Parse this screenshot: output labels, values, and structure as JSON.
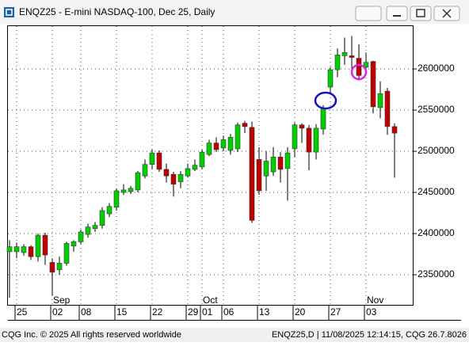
{
  "chart_data": {
    "type": "candlestick",
    "title": "ENQZ25 - E-mini NASDAQ-100, Dec 25, Daily",
    "categories": [
      null,
      "25",
      null,
      null,
      null,
      null,
      "02",
      null,
      null,
      null,
      "08",
      null,
      null,
      null,
      null,
      "15",
      null,
      null,
      null,
      null,
      "22",
      null,
      null,
      null,
      null,
      "29",
      null,
      "01",
      null,
      null,
      "06",
      null,
      null,
      null,
      null,
      "13",
      null,
      null,
      null,
      null,
      "20",
      null,
      null,
      null,
      null,
      "27",
      null,
      null,
      null,
      null,
      "03",
      null,
      null,
      null,
      null
    ],
    "month_labels": [
      null,
      null,
      null,
      null,
      null,
      null,
      "Sep",
      null,
      null,
      null,
      null,
      null,
      null,
      null,
      null,
      null,
      null,
      null,
      null,
      null,
      null,
      null,
      null,
      null,
      null,
      null,
      null,
      "Oct",
      null,
      null,
      null,
      null,
      null,
      null,
      null,
      null,
      null,
      null,
      null,
      null,
      null,
      null,
      null,
      null,
      null,
      null,
      null,
      null,
      null,
      null,
      "Nov",
      null,
      null,
      null,
      null
    ],
    "open": [
      2378000,
      2378000,
      2377000,
      2384000,
      2372000,
      2398000,
      2365000,
      2356000,
      2364000,
      2385000,
      2390000,
      2399000,
      2406000,
      2410000,
      2424000,
      2432000,
      2450000,
      2451000,
      2453000,
      2470000,
      2484000,
      2498000,
      2478000,
      2472000,
      2463000,
      2470000,
      2478000,
      2481000,
      2496000,
      2510000,
      2504000,
      2501000,
      2503000,
      2534000,
      2529000,
      2490000,
      2470000,
      2475000,
      2493000,
      2479000,
      2503000,
      2532000,
      2528000,
      2499000,
      2527000,
      2578000,
      2599000,
      2616000,
      2616000,
      2613000,
      2602000,
      2609000,
      2553000,
      2573000,
      2530000
    ],
    "high": [
      2392000,
      2389000,
      2387000,
      2386000,
      2400000,
      2401000,
      2370000,
      2372000,
      2390000,
      2392000,
      2405000,
      2412000,
      2414000,
      2432000,
      2437000,
      2455000,
      2460000,
      2458000,
      2476000,
      2490000,
      2502000,
      2501000,
      2485000,
      2475000,
      2476000,
      2485000,
      2490000,
      2502000,
      2514000,
      2517000,
      2519000,
      2521000,
      2535000,
      2537000,
      2536000,
      2505000,
      2500000,
      2505000,
      2499000,
      2505000,
      2535000,
      2534000,
      2532000,
      2533000,
      2556000,
      2602000,
      2625000,
      2638000,
      2640000,
      2630000,
      2620000,
      2610000,
      2585000,
      2577000,
      2534000
    ],
    "low": [
      2322000,
      2370000,
      2373000,
      2368000,
      2366000,
      2362000,
      2325000,
      2350000,
      2361000,
      2378000,
      2387000,
      2395000,
      2402000,
      2406000,
      2420000,
      2428000,
      2447000,
      2448000,
      2450000,
      2467000,
      2478000,
      2475000,
      2462000,
      2445000,
      2455000,
      2468000,
      2476000,
      2478000,
      2494000,
      2499000,
      2500000,
      2496000,
      2499000,
      2522000,
      2413000,
      2447000,
      2452000,
      2470000,
      2462000,
      2440000,
      2493000,
      2510000,
      2477000,
      2490000,
      2520000,
      2570000,
      2590000,
      2605000,
      2596000,
      2586000,
      2596000,
      2546000,
      2540000,
      2520000,
      2468000
    ],
    "close": [
      2384000,
      2384000,
      2384000,
      2372000,
      2398000,
      2374000,
      2353000,
      2364000,
      2388000,
      2390000,
      2402000,
      2408000,
      2410000,
      2428000,
      2433000,
      2452000,
      2453000,
      2455000,
      2474000,
      2484000,
      2498000,
      2478000,
      2470000,
      2460000,
      2472000,
      2479000,
      2483000,
      2499000,
      2510000,
      2502000,
      2514000,
      2517000,
      2532000,
      2530000,
      2416000,
      2452000,
      2488000,
      2493000,
      2478000,
      2498000,
      2532000,
      2528000,
      2499000,
      2528000,
      2552000,
      2599000,
      2617000,
      2620000,
      2614000,
      2592000,
      2608000,
      2554000,
      2570000,
      2530000,
      2522000
    ],
    "up_color": "#00d000",
    "down_color": "#c00000",
    "ylim": [
      2312500,
      2652000
    ],
    "yticks": [
      2350000,
      2400000,
      2450000,
      2500000,
      2550000,
      2600000
    ],
    "grid": true
  },
  "footer": {
    "left": "CQG Inc. © 2025 All rights reserved worldwide",
    "right": "ENQZ25,D | 11/08/2025 12:14:15, CQG 26.7.8026"
  }
}
